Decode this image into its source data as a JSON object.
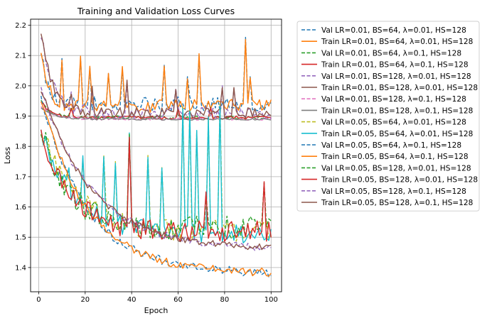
{
  "chart_data": {
    "type": "line",
    "title": "Training and Validation Loss Curves",
    "xlabel": "Epoch",
    "ylabel": "Loss",
    "xlim": [
      -3.5,
      104.5
    ],
    "ylim": [
      1.32,
      2.22
    ],
    "x_ticks": [
      0,
      20,
      40,
      60,
      80,
      100
    ],
    "y_ticks": [
      1.4,
      1.5,
      1.6,
      1.7,
      1.8,
      1.9,
      2.0,
      2.1,
      2.2
    ],
    "grid": true,
    "legend_position": "outside-right",
    "series": [
      {
        "name": "Val LR=0.01, BS=64, λ=0.01, HS=128",
        "color": "#1f77b4",
        "dashed": true,
        "group": "a",
        "seed": 1
      },
      {
        "name": "Train LR=0.01, BS=64, λ=0.01, HS=128",
        "color": "#ff7f0e",
        "dashed": false,
        "group": "a",
        "seed": 2
      },
      {
        "name": "Val LR=0.01, BS=64, λ=0.1, HS=128",
        "color": "#2ca02c",
        "dashed": true,
        "group": "b",
        "seed": 3
      },
      {
        "name": "Train LR=0.01, BS=64, λ=0.1, HS=128",
        "color": "#d62728",
        "dashed": false,
        "group": "b",
        "seed": 4
      },
      {
        "name": "Val LR=0.01, BS=128, λ=0.01, HS=128",
        "color": "#9467bd",
        "dashed": true,
        "group": "c",
        "seed": 5
      },
      {
        "name": "Train LR=0.01, BS=128, λ=0.01, HS=128",
        "color": "#8c564b",
        "dashed": false,
        "group": "c",
        "seed": 6
      },
      {
        "name": "Val LR=0.01, BS=128, λ=0.1, HS=128",
        "color": "#e377c2",
        "dashed": true,
        "group": "d",
        "seed": 7
      },
      {
        "name": "Train LR=0.01, BS=128, λ=0.1, HS=128",
        "color": "#7f7f7f",
        "dashed": false,
        "group": "d",
        "seed": 8
      },
      {
        "name": "Val LR=0.05, BS=64, λ=0.01, HS=128",
        "color": "#bcbd22",
        "dashed": true,
        "group": "e",
        "seed": 9
      },
      {
        "name": "Train LR=0.05, BS=64, λ=0.01, HS=128",
        "color": "#17becf",
        "dashed": false,
        "group": "e",
        "seed": 10
      },
      {
        "name": "Val LR=0.05, BS=64, λ=0.1, HS=128",
        "color": "#1f77b4",
        "dashed": true,
        "group": "f",
        "seed": 11
      },
      {
        "name": "Train LR=0.05, BS=64, λ=0.1, HS=128",
        "color": "#ff7f0e",
        "dashed": false,
        "group": "f",
        "seed": 12
      },
      {
        "name": "Val LR=0.05, BS=128, λ=0.01, HS=128",
        "color": "#2ca02c",
        "dashed": true,
        "group": "g",
        "seed": 13
      },
      {
        "name": "Train LR=0.05, BS=128, λ=0.01, HS=128",
        "color": "#d62728",
        "dashed": false,
        "group": "g",
        "seed": 14
      },
      {
        "name": "Val LR=0.05, BS=128, λ=0.1, HS=128",
        "color": "#9467bd",
        "dashed": true,
        "group": "h",
        "seed": 15
      },
      {
        "name": "Train LR=0.05, BS=128, λ=0.1, HS=128",
        "color": "#8c564b",
        "dashed": false,
        "group": "h",
        "seed": 16
      }
    ],
    "curve_shapes": {
      "a": {
        "start": 2.12,
        "end": 1.94,
        "tau": 3,
        "noise": 0.025,
        "spikes": [
          [
            10,
            2.09
          ],
          [
            18,
            2.09
          ],
          [
            22,
            2.06
          ],
          [
            30,
            2.04
          ],
          [
            36,
            2.06
          ],
          [
            54,
            2.07
          ],
          [
            64,
            2.03
          ],
          [
            69,
            2.1
          ],
          [
            89,
            2.16
          ],
          [
            91,
            2.03
          ]
        ]
      },
      "b": {
        "start": 1.95,
        "end": 1.895,
        "tau": 4,
        "noise": 0.006,
        "spikes": [
          [
            14,
            1.93
          ],
          [
            60,
            1.92
          ],
          [
            74,
            1.93
          ]
        ]
      },
      "c": {
        "start": 2.17,
        "end": 1.91,
        "tau": 5,
        "noise": 0.02,
        "spikes": [
          [
            14,
            1.98
          ],
          [
            23,
            1.99
          ],
          [
            38,
            2.01
          ],
          [
            59,
            1.99
          ],
          [
            79,
            2.0
          ],
          [
            84,
            1.99
          ]
        ]
      },
      "d": {
        "start": 1.93,
        "end": 1.89,
        "tau": 6,
        "noise": 0.004,
        "spikes": []
      },
      "e": {
        "start": 1.86,
        "end": 1.52,
        "tau": 14,
        "noise": 0.035,
        "spikes": [
          [
            13,
            1.72
          ],
          [
            19,
            1.76
          ],
          [
            28,
            1.77
          ],
          [
            33,
            1.75
          ],
          [
            39,
            1.84
          ],
          [
            47,
            1.77
          ],
          [
            53,
            1.73
          ],
          [
            62,
            1.93
          ],
          [
            65,
            1.92
          ],
          [
            68,
            1.85
          ],
          [
            73,
            1.89
          ],
          [
            78,
            1.94
          ]
        ]
      },
      "f": {
        "start": 1.96,
        "end": 1.38,
        "tau": 20,
        "noise": 0.015,
        "spikes": []
      },
      "g": {
        "start": 1.86,
        "end": 1.53,
        "tau": 12,
        "noise": 0.04,
        "spikes": [
          [
            39,
            1.84
          ],
          [
            72,
            1.64
          ],
          [
            97,
            1.68
          ]
        ]
      },
      "h": {
        "start": 1.99,
        "end": 1.46,
        "tau": 22,
        "noise": 0.012,
        "spikes": []
      }
    }
  }
}
